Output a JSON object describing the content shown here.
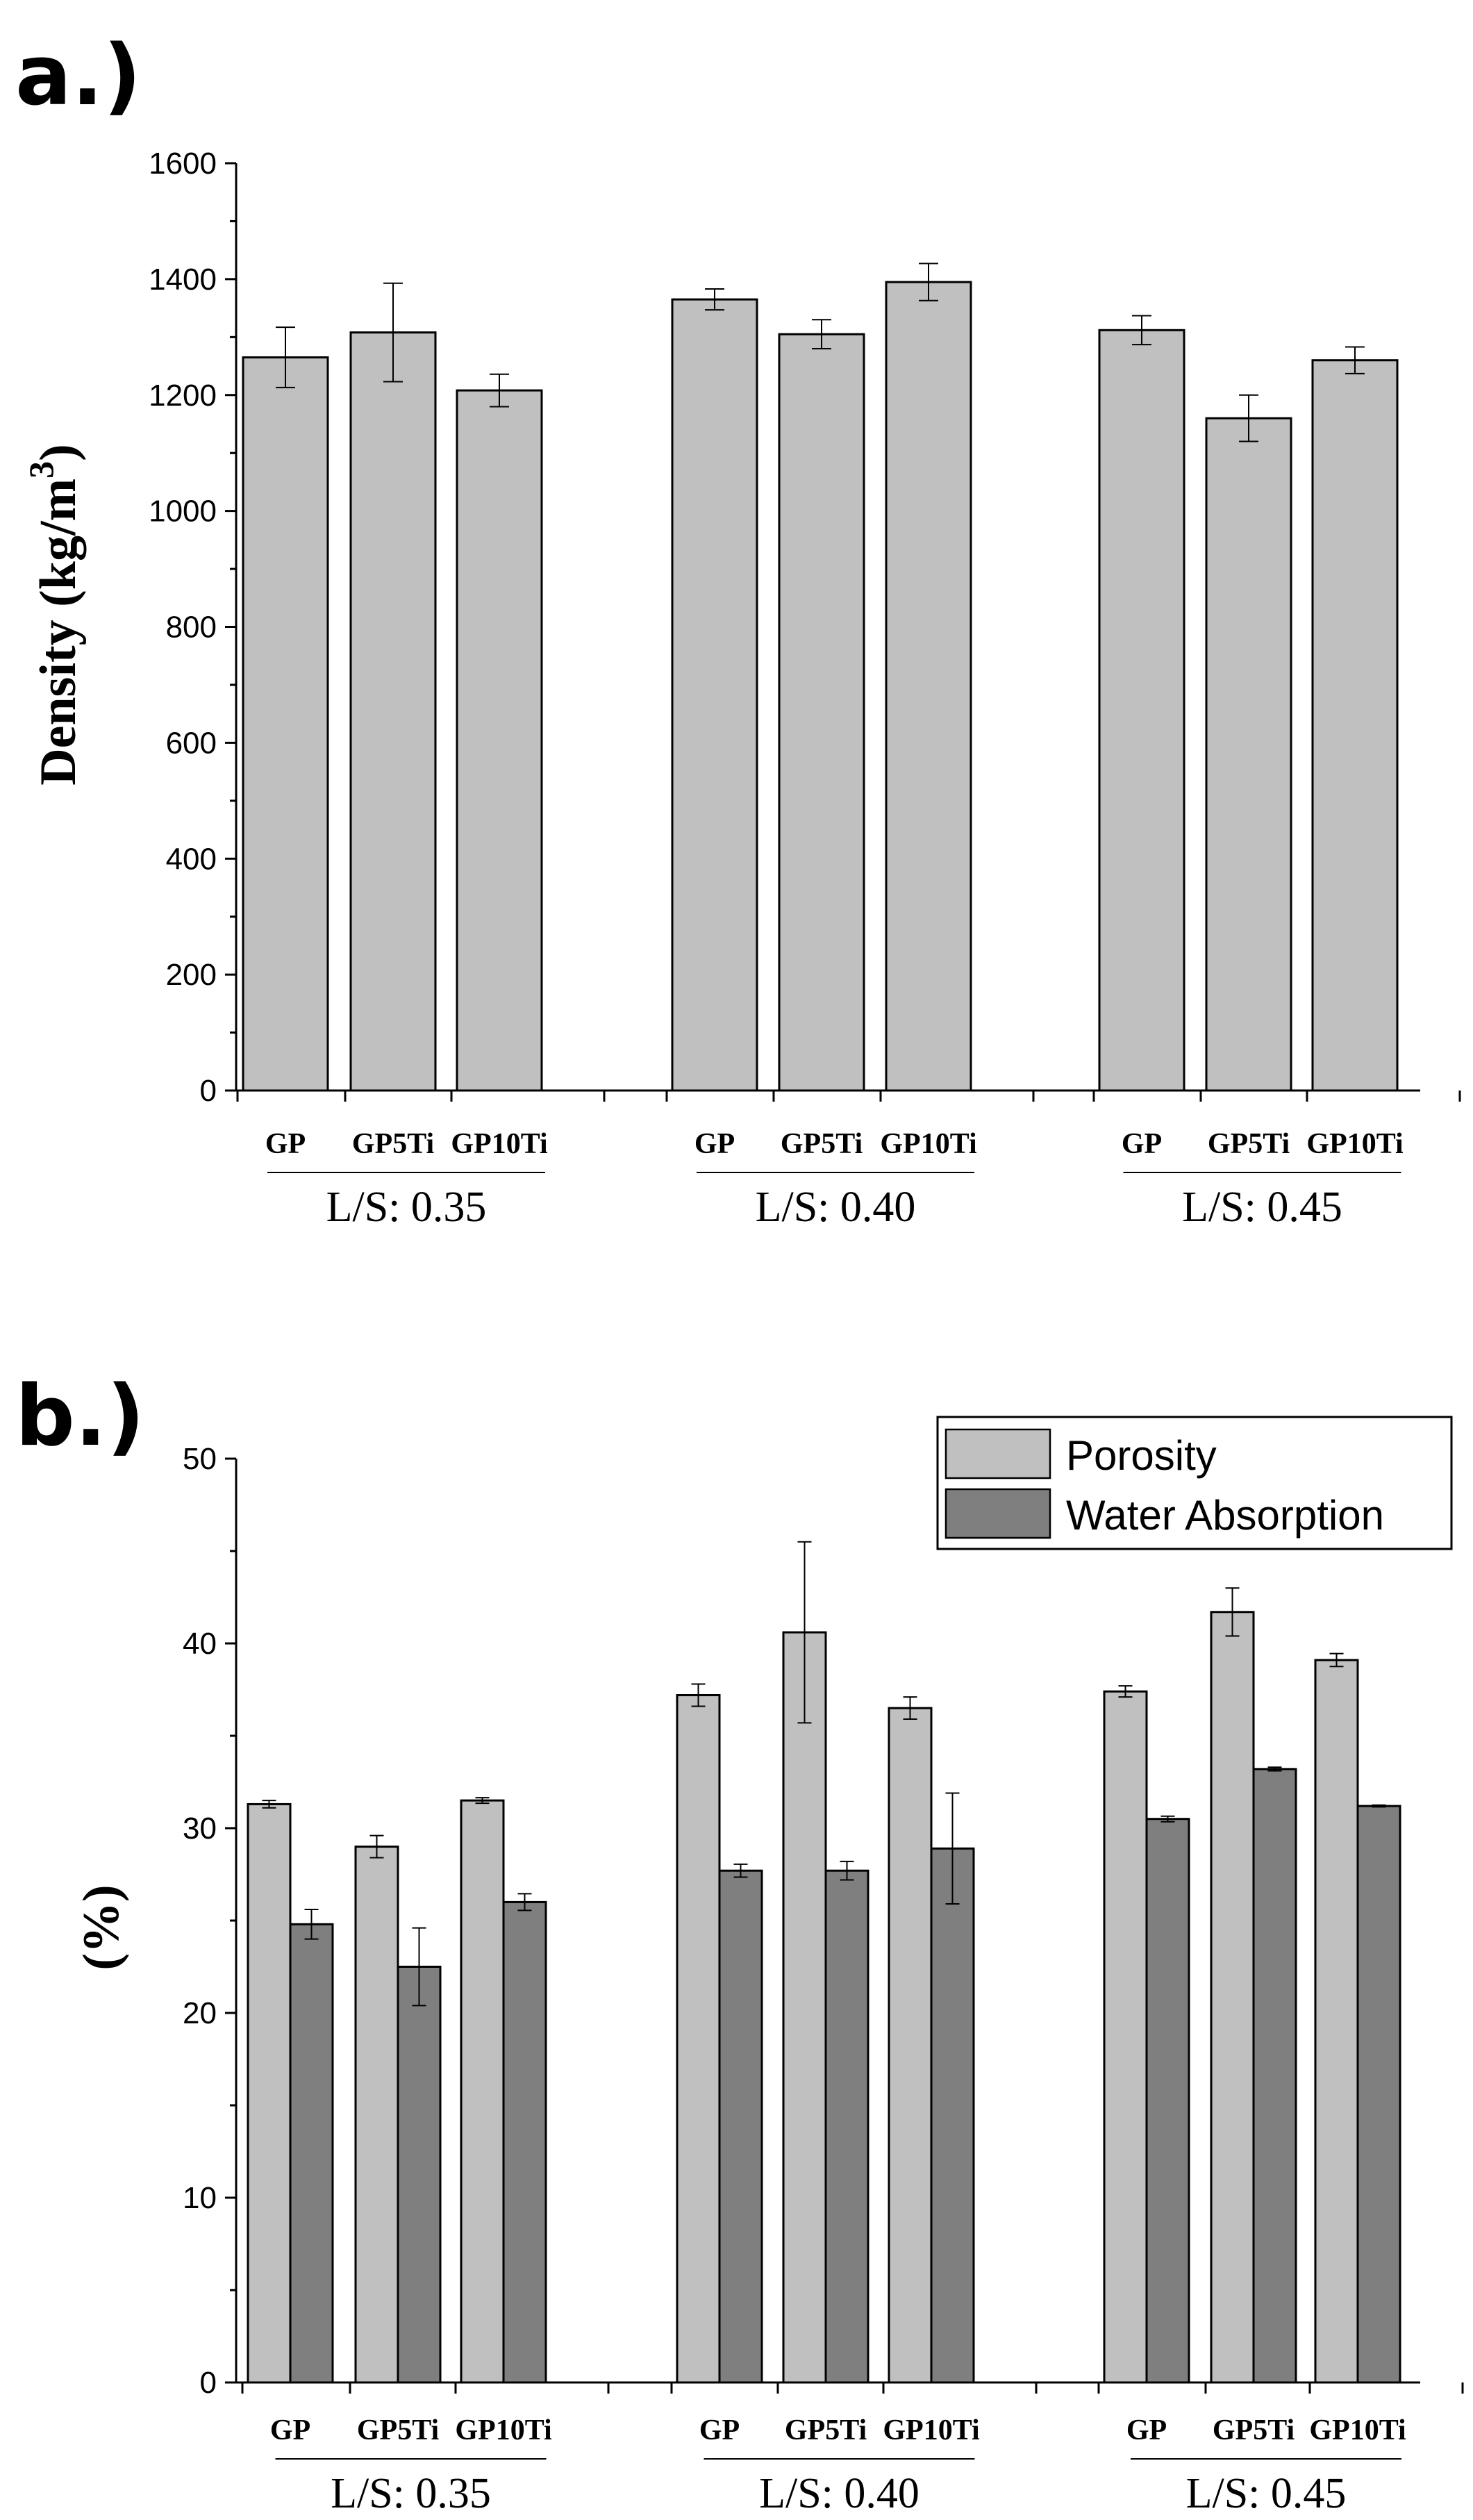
{
  "chart_data": [
    {
      "panel_label": "a.)",
      "type": "bar",
      "ylabel_main": "Density (kg/m",
      "ylabel_sup": "3",
      "ylabel_close": ")",
      "ylim": [
        0,
        1600
      ],
      "yticks": [
        0,
        200,
        400,
        600,
        800,
        1000,
        1200,
        1400,
        1600
      ],
      "groups": [
        {
          "label": "L/S: 0.35",
          "categories": [
            "GP",
            "GP5Ti",
            "GP10Ti"
          ]
        },
        {
          "label": "L/S: 0.40",
          "categories": [
            "GP",
            "GP5Ti",
            "GP10Ti"
          ]
        },
        {
          "label": "L/S: 0.45",
          "categories": [
            "GP",
            "GP5Ti",
            "GP10Ti"
          ]
        }
      ],
      "series": [
        {
          "name": "Density",
          "color": "#c0c0c0",
          "values": [
            1265,
            1308,
            1208,
            1365,
            1305,
            1395,
            1312,
            1160,
            1260
          ],
          "errors": [
            52,
            85,
            28,
            18,
            25,
            32,
            25,
            40,
            23
          ]
        }
      ]
    },
    {
      "panel_label": "b.)",
      "type": "bar",
      "ylabel_main": "(%)",
      "ylim": [
        0,
        50
      ],
      "yticks": [
        0,
        10,
        20,
        30,
        40,
        50
      ],
      "legend": {
        "position": "top-right",
        "entries": [
          "Porosity",
          "Water Absorption"
        ]
      },
      "groups": [
        {
          "label": "L/S: 0.35",
          "categories": [
            "GP",
            "GP5Ti",
            "GP10Ti"
          ]
        },
        {
          "label": "L/S: 0.40",
          "categories": [
            "GP",
            "GP5Ti",
            "GP10Ti"
          ]
        },
        {
          "label": "L/S: 0.45",
          "categories": [
            "GP",
            "GP5Ti",
            "GP10Ti"
          ]
        }
      ],
      "series": [
        {
          "name": "Porosity",
          "color": "#c0c0c0",
          "values": [
            31.3,
            29.0,
            31.5,
            37.2,
            40.6,
            36.5,
            37.4,
            41.7,
            39.1
          ],
          "errors": [
            0.2,
            0.6,
            0.15,
            0.6,
            4.9,
            0.6,
            0.3,
            1.3,
            0.35
          ]
        },
        {
          "name": "Water Absorption",
          "color": "#7f7f7f",
          "values": [
            24.8,
            22.5,
            26.0,
            27.7,
            27.7,
            28.9,
            30.5,
            33.2,
            31.2
          ],
          "errors": [
            0.8,
            2.1,
            0.45,
            0.35,
            0.5,
            3.0,
            0.15,
            0.1,
            0.05
          ]
        }
      ]
    }
  ]
}
